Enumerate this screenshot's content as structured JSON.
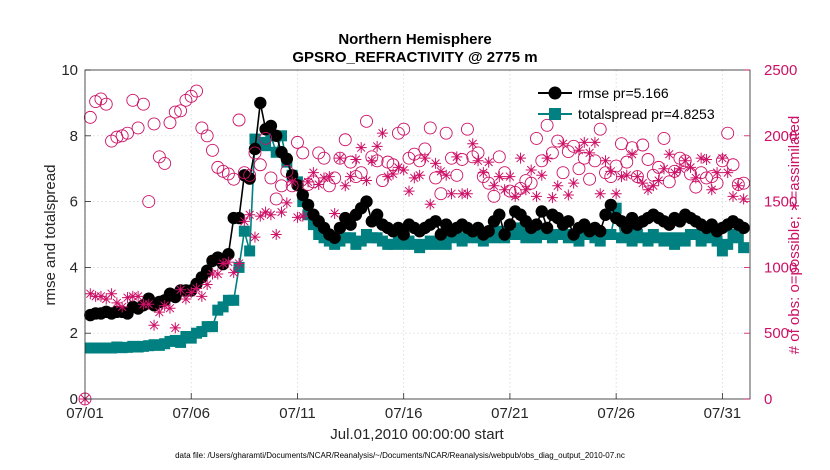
{
  "chart_data": {
    "type": "line",
    "title": "Northern Hemisphere",
    "subtitle": "GPSRO_REFRACTIVITY @ 2775 m",
    "xlabel": "Jul.01,2010 00:00:00 start",
    "ylabel": "rmse and totalspread",
    "ylabel_right": "# of obs: o=possible; ∗=assimilated",
    "footnote": "data file: /Users/gharamti/Documents/NCAR/Reanalysis/~/Documents/NCAR/Reanalysis/webpub/obs_diag_output_2010-07.nc",
    "x_range": [
      0,
      31.3
    ],
    "ylim": [
      0,
      10
    ],
    "ylim_right": [
      0,
      2500
    ],
    "x_ticks": [
      {
        "value": 0,
        "label": "07/01"
      },
      {
        "value": 5,
        "label": "07/06"
      },
      {
        "value": 10,
        "label": "07/11"
      },
      {
        "value": 15,
        "label": "07/16"
      },
      {
        "value": 20,
        "label": "07/21"
      },
      {
        "value": 25,
        "label": "07/26"
      },
      {
        "value": 30,
        "label": "07/31"
      }
    ],
    "y_ticks": [
      {
        "value": 0,
        "label": "0"
      },
      {
        "value": 2,
        "label": "2"
      },
      {
        "value": 4,
        "label": "4"
      },
      {
        "value": 6,
        "label": "6"
      },
      {
        "value": 8,
        "label": "8"
      },
      {
        "value": 10,
        "label": "10"
      }
    ],
    "y_ticks_right": [
      {
        "value": 0,
        "label": "0"
      },
      {
        "value": 500,
        "label": "500"
      },
      {
        "value": 1000,
        "label": "1000"
      },
      {
        "value": 1500,
        "label": "1500"
      },
      {
        "value": 2000,
        "label": "2000"
      },
      {
        "value": 2500,
        "label": "2500"
      }
    ],
    "grid": true,
    "legend_position": "top-right",
    "colors": {
      "rmse": "#000000",
      "spread": "#008080",
      "obs": "#cc1166"
    },
    "x": [
      0.0,
      0.25,
      0.5,
      0.75,
      1.0,
      1.25,
      1.5,
      1.75,
      2.0,
      2.25,
      2.5,
      2.75,
      3.0,
      3.25,
      3.5,
      3.75,
      4.0,
      4.25,
      4.5,
      4.75,
      5.0,
      5.25,
      5.5,
      5.75,
      6.0,
      6.25,
      6.5,
      6.75,
      7.0,
      7.25,
      7.5,
      7.75,
      8.0,
      8.25,
      8.5,
      8.75,
      9.0,
      9.25,
      9.5,
      9.75,
      10.0,
      10.25,
      10.5,
      10.75,
      11.0,
      11.25,
      11.5,
      11.75,
      12.0,
      12.25,
      12.5,
      12.75,
      13.0,
      13.25,
      13.5,
      13.75,
      14.0,
      14.25,
      14.5,
      14.75,
      15.0,
      15.25,
      15.5,
      15.75,
      16.0,
      16.25,
      16.5,
      16.75,
      17.0,
      17.25,
      17.5,
      17.75,
      18.0,
      18.25,
      18.5,
      18.75,
      19.0,
      19.25,
      19.5,
      19.75,
      20.0,
      20.25,
      20.5,
      20.75,
      21.0,
      21.25,
      21.5,
      21.75,
      22.0,
      22.25,
      22.5,
      22.75,
      23.0,
      23.25,
      23.5,
      23.75,
      24.0,
      24.25,
      24.5,
      24.75,
      25.0,
      25.25,
      25.5,
      25.75,
      26.0,
      26.25,
      26.5,
      26.75,
      27.0,
      27.25,
      27.5,
      27.75,
      28.0,
      28.25,
      28.5,
      28.75,
      29.0,
      29.25,
      29.5,
      29.75,
      30.0,
      30.25,
      30.5,
      30.75,
      31.0
    ],
    "series": [
      {
        "name": "rmse pr=5.166",
        "marker": "circle-filled",
        "values": [
          null,
          2.55,
          2.6,
          2.6,
          2.65,
          2.6,
          2.65,
          2.65,
          2.6,
          2.8,
          2.75,
          2.85,
          3.05,
          2.85,
          2.95,
          3.0,
          3.2,
          3.1,
          3.3,
          3.3,
          3.3,
          3.5,
          3.7,
          3.9,
          4.2,
          4.3,
          4.1,
          4.4,
          5.5,
          5.5,
          6.8,
          6.7,
          7.6,
          9.0,
          8.2,
          8.3,
          8.0,
          7.5,
          7.3,
          6.8,
          6.5,
          6.2,
          5.9,
          5.6,
          5.4,
          5.2,
          5.0,
          4.9,
          5.2,
          5.5,
          5.3,
          5.6,
          5.8,
          6.0,
          5.4,
          5.6,
          5.3,
          5.2,
          5.1,
          5.2,
          5.0,
          5.3,
          5.2,
          5.1,
          5.2,
          5.3,
          5.4,
          5.0,
          5.3,
          5.1,
          5.2,
          5.3,
          5.2,
          5.1,
          5.2,
          5.0,
          5.1,
          5.4,
          5.6,
          5.0,
          5.3,
          5.7,
          5.6,
          5.4,
          5.2,
          5.3,
          5.7,
          5.2,
          5.6,
          5.5,
          5.3,
          5.4,
          5.0,
          5.2,
          5.3,
          5.1,
          5.2,
          5.1,
          5.6,
          5.9,
          5.5,
          5.4,
          5.2,
          5.5,
          5.3,
          5.4,
          5.5,
          5.6,
          5.5,
          5.4,
          5.3,
          5.5,
          5.4,
          5.6,
          5.5,
          5.4,
          5.3,
          5.2,
          5.3,
          5.1,
          5.2,
          5.3,
          5.4,
          5.3,
          5.2
        ]
      },
      {
        "name": "totalspread pr=4.8253",
        "marker": "square-filled",
        "values": [
          null,
          1.55,
          1.55,
          1.55,
          1.55,
          1.55,
          1.58,
          1.56,
          1.57,
          1.6,
          1.58,
          1.6,
          1.62,
          1.65,
          1.63,
          1.68,
          1.75,
          1.78,
          1.72,
          1.9,
          1.85,
          2.0,
          2.05,
          2.2,
          2.2,
          2.7,
          2.8,
          3.0,
          3.0,
          4.0,
          5.1,
          4.5,
          7.9,
          7.8,
          7.7,
          8.0,
          7.5,
          8.0,
          7.2,
          6.8,
          6.6,
          6.0,
          5.6,
          5.3,
          5.0,
          4.9,
          4.8,
          4.7,
          4.8,
          4.9,
          4.9,
          4.7,
          4.8,
          5.0,
          4.9,
          4.9,
          4.8,
          4.7,
          4.7,
          4.8,
          4.7,
          4.8,
          4.7,
          4.6,
          4.7,
          4.8,
          4.7,
          4.8,
          4.7,
          4.9,
          5.0,
          4.8,
          4.9,
          5.0,
          4.9,
          4.8,
          5.0,
          4.9,
          5.1,
          4.9,
          5.0,
          5.0,
          5.2,
          4.9,
          5.0,
          4.9,
          5.0,
          5.1,
          4.9,
          5.0,
          5.0,
          4.9,
          5.0,
          4.8,
          5.0,
          5.1,
          4.9,
          4.8,
          5.0,
          5.0,
          5.8,
          4.9,
          5.0,
          4.8,
          5.0,
          4.9,
          4.8,
          5.0,
          4.9,
          4.8,
          4.9,
          4.7,
          4.9,
          4.8,
          5.0,
          5.0,
          4.8,
          4.9,
          5.0,
          4.8,
          4.5,
          4.7,
          5.0,
          4.9,
          4.6
        ]
      },
      {
        "name": "# possible",
        "axis": "right",
        "marker": "circle-open",
        "values": [
          0,
          2140,
          2260,
          2280,
          2240,
          1960,
          1990,
          2000,
          2020,
          2270,
          2060,
          2240,
          1500,
          2090,
          1840,
          1790,
          2100,
          2180,
          2190,
          2270,
          2300,
          2340,
          2060,
          2000,
          1890,
          1760,
          1730,
          1710,
          1670,
          2120,
          1720,
          1700,
          1870,
          1780,
          1980,
          1680,
          1520,
          1620,
          1730,
          1620,
          1950,
          1870,
          1630,
          1650,
          1870,
          1830,
          1620,
          1680,
          1830,
          1970,
          1800,
          1690,
          1720,
          2110,
          1840,
          1810,
          1660,
          1800,
          1780,
          2020,
          2050,
          1830,
          1860,
          1810,
          1900,
          2060,
          1680,
          1560,
          2020,
          1830,
          1700,
          1820,
          2050,
          1840,
          1870,
          1690,
          1640,
          1540,
          1840,
          1720,
          1580,
          1570,
          1600,
          1660,
          1640,
          1980,
          1810,
          2080,
          1870,
          1960,
          1720,
          1880,
          1920,
          1750,
          1830,
          1670,
          1810,
          2050,
          1720,
          1690,
          1770,
          1940,
          1800,
          1910,
          1690,
          1930,
          1820,
          1700,
          1760,
          1980,
          1650,
          1730,
          1830,
          1810,
          1710,
          1610,
          1720,
          1680,
          1690,
          1640,
          1810,
          2020,
          1780,
          1630,
          1640
        ]
      },
      {
        "name": "# assimilated",
        "axis": "right",
        "marker": "asterisk",
        "values": [
          0,
          800,
          780,
          780,
          760,
          800,
          730,
          700,
          770,
          780,
          780,
          720,
          720,
          560,
          660,
          710,
          690,
          540,
          830,
          760,
          810,
          840,
          780,
          870,
          950,
          950,
          1030,
          1040,
          960,
          1030,
          1350,
          1400,
          1230,
          1390,
          1420,
          1400,
          1250,
          1420,
          1490,
          1650,
          1380,
          1390,
          1650,
          1720,
          1630,
          1680,
          1690,
          1410,
          1830,
          1620,
          1690,
          1820,
          1910,
          1660,
          1810,
          1920,
          2020,
          1690,
          1710,
          1760,
          1740,
          1580,
          1680,
          1700,
          1830,
          1480,
          1790,
          1730,
          1700,
          1560,
          1840,
          1560,
          1560,
          1940,
          1810,
          1720,
          1800,
          1620,
          1690,
          1590,
          1690,
          1540,
          1830,
          1590,
          1740,
          1540,
          1700,
          1830,
          1530,
          1620,
          1940,
          1550,
          1640,
          1890,
          1950,
          1870,
          1950,
          1560,
          1810,
          1730,
          1560,
          1690,
          1700,
          1860,
          1690,
          1640,
          1590,
          1620,
          1660,
          1750,
          1860,
          1720,
          1750,
          1810,
          1760,
          1680,
          1830,
          1820,
          1590,
          1720,
          1830,
          1720,
          1540,
          1620,
          1520
        ]
      }
    ]
  }
}
